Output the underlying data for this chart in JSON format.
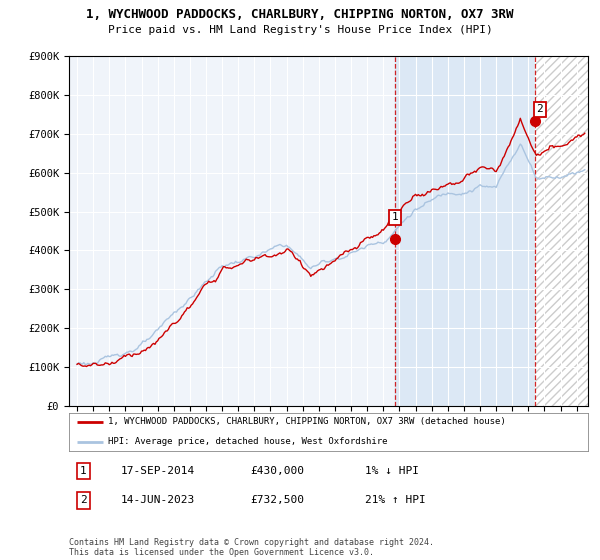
{
  "title": "1, WYCHWOOD PADDOCKS, CHARLBURY, CHIPPING NORTON, OX7 3RW",
  "subtitle": "Price paid vs. HM Land Registry's House Price Index (HPI)",
  "legend_line1": "1, WYCHWOOD PADDOCKS, CHARLBURY, CHIPPING NORTON, OX7 3RW (detached house)",
  "legend_line2": "HPI: Average price, detached house, West Oxfordshire",
  "transaction1_date": "17-SEP-2014",
  "transaction1_price": "£430,000",
  "transaction1_hpi": "1% ↓ HPI",
  "transaction2_date": "14-JUN-2023",
  "transaction2_price": "£732,500",
  "transaction2_hpi": "21% ↑ HPI",
  "footer": "Contains HM Land Registry data © Crown copyright and database right 2024.\nThis data is licensed under the Open Government Licence v3.0.",
  "hpi_color": "#aac4e0",
  "price_color": "#cc0000",
  "vline_color": "#cc0000",
  "shade_color": "#dce8f5",
  "plot_bg_color": "#f0f4fa",
  "hatch_color": "#cccccc",
  "ylim": [
    0,
    900000
  ],
  "yticks": [
    0,
    100000,
    200000,
    300000,
    400000,
    500000,
    600000,
    700000,
    800000,
    900000
  ],
  "start_year": 1995,
  "end_year": 2026,
  "t1_year": 2014.708,
  "t1_price": 430000,
  "t2_year": 2023.417,
  "t2_price": 732500
}
